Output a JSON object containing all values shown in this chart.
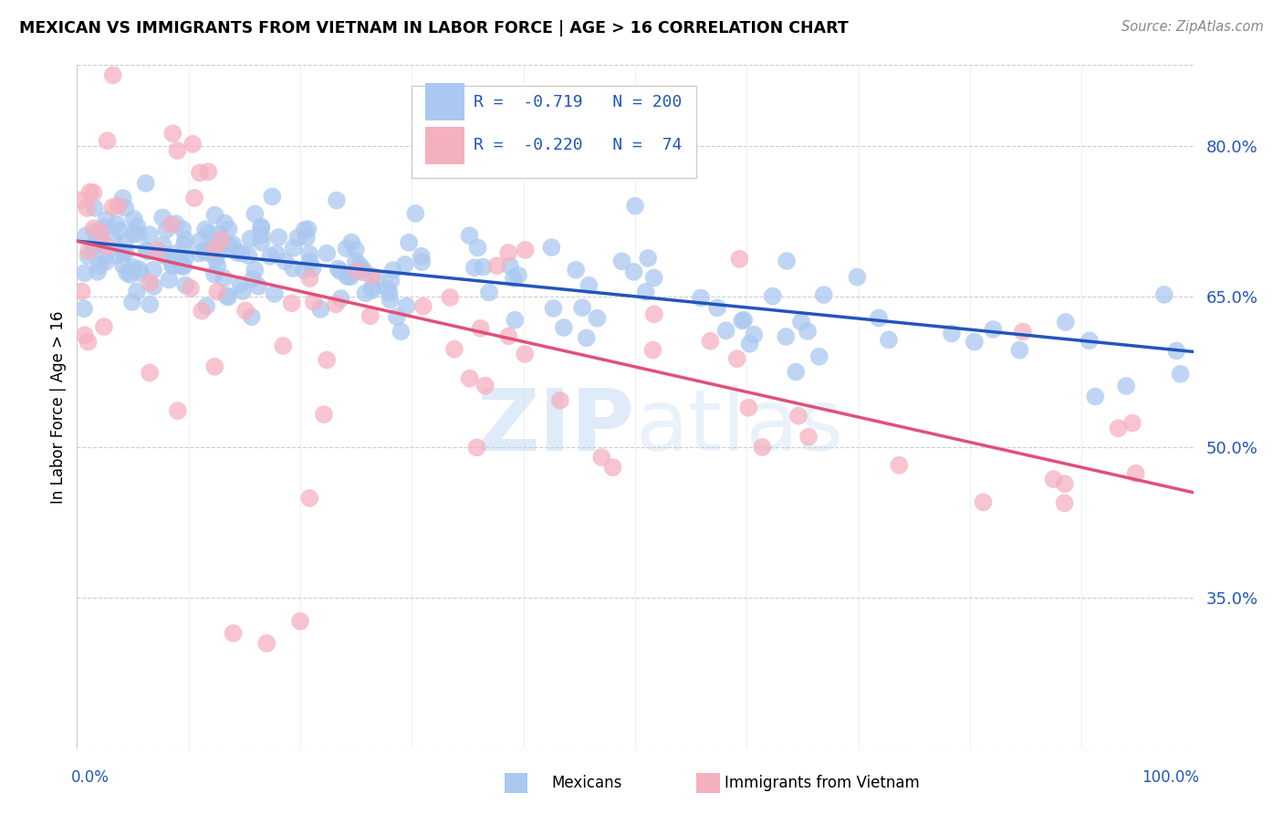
{
  "title": "MEXICAN VS IMMIGRANTS FROM VIETNAM IN LABOR FORCE | AGE > 16 CORRELATION CHART",
  "source": "Source: ZipAtlas.com",
  "ylabel": "In Labor Force | Age > 16",
  "y_tick_labels": [
    "35.0%",
    "50.0%",
    "65.0%",
    "80.0%"
  ],
  "y_tick_values": [
    0.35,
    0.5,
    0.65,
    0.8
  ],
  "x_range": [
    0.0,
    1.0
  ],
  "y_range": [
    0.2,
    0.88
  ],
  "legend_blue_r": "-0.719",
  "legend_blue_n": "200",
  "legend_pink_r": "-0.220",
  "legend_pink_n": " 74",
  "blue_color": "#aac8f0",
  "blue_line_color": "#2255bb",
  "pink_color": "#f5b0c0",
  "pink_line_color": "#e0507a",
  "watermark_zip": "ZIP",
  "watermark_atlas": "atlas",
  "background_color": "#ffffff",
  "grid_color": "#cccccc",
  "blue_trend_y_start": 0.705,
  "blue_trend_y_end": 0.595,
  "pink_trend_y_start": 0.705,
  "pink_trend_y_end": 0.455,
  "axis_label_color": "#2255bb",
  "tick_label_color": "#2255bb"
}
